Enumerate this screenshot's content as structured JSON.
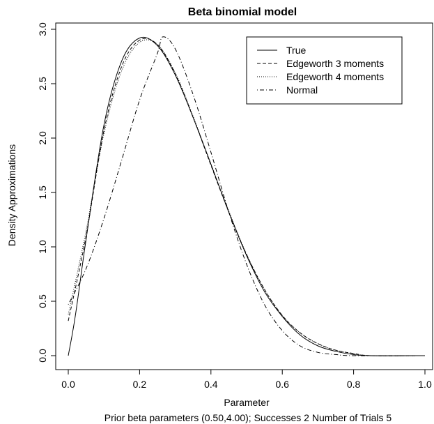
{
  "chart_data": {
    "type": "line",
    "title": "Beta binomial model",
    "xlabel": "Parameter",
    "ylabel": "Density Approximations",
    "subtitle": "Prior beta parameters (0.50,4.00); Successes  2 Number of Trials  5",
    "xlim": [
      0,
      1
    ],
    "ylim": [
      0,
      3
    ],
    "x_ticks": [
      0.0,
      0.2,
      0.4,
      0.6,
      0.8,
      1.0
    ],
    "x_tick_labels": [
      "0.0",
      "0.2",
      "0.4",
      "0.6",
      "0.8",
      "1.0"
    ],
    "y_ticks": [
      0.0,
      0.5,
      1.0,
      1.5,
      2.0,
      2.5,
      3.0
    ],
    "y_tick_labels": [
      "0.0",
      "0.5",
      "1.0",
      "1.5",
      "2.0",
      "2.5",
      "3.0"
    ],
    "legend_position": "top-right",
    "grid": false,
    "series": [
      {
        "name": "True",
        "dash": "solid",
        "points": [
          [
            0.0,
            0.0
          ],
          [
            0.02,
            0.37
          ],
          [
            0.05,
            1.07
          ],
          [
            0.1,
            2.12
          ],
          [
            0.15,
            2.71
          ],
          [
            0.2,
            2.92
          ],
          [
            0.25,
            2.85
          ],
          [
            0.3,
            2.58
          ],
          [
            0.35,
            2.19
          ],
          [
            0.4,
            1.76
          ],
          [
            0.45,
            1.32
          ],
          [
            0.5,
            0.92
          ],
          [
            0.55,
            0.59
          ],
          [
            0.6,
            0.36
          ],
          [
            0.65,
            0.19
          ],
          [
            0.7,
            0.09
          ],
          [
            0.75,
            0.04
          ],
          [
            0.8,
            0.01
          ],
          [
            0.85,
            0.0
          ],
          [
            1.0,
            0.0
          ]
        ]
      },
      {
        "name": "Edgeworth 3 moments",
        "dash": "dashed",
        "points": [
          [
            0.0,
            0.32
          ],
          [
            0.05,
            1.1
          ],
          [
            0.1,
            2.07
          ],
          [
            0.15,
            2.66
          ],
          [
            0.2,
            2.9
          ],
          [
            0.25,
            2.86
          ],
          [
            0.3,
            2.59
          ],
          [
            0.35,
            2.19
          ],
          [
            0.4,
            1.75
          ],
          [
            0.45,
            1.32
          ],
          [
            0.5,
            0.93
          ],
          [
            0.55,
            0.61
          ],
          [
            0.6,
            0.37
          ],
          [
            0.65,
            0.21
          ],
          [
            0.7,
            0.11
          ],
          [
            0.75,
            0.05
          ],
          [
            0.8,
            0.02
          ],
          [
            0.85,
            0.0
          ],
          [
            1.0,
            0.0
          ]
        ]
      },
      {
        "name": "Edgeworth 4 moments",
        "dash": "dotted",
        "points": [
          [
            0.0,
            0.38
          ],
          [
            0.05,
            1.15
          ],
          [
            0.1,
            2.04
          ],
          [
            0.15,
            2.62
          ],
          [
            0.2,
            2.88
          ],
          [
            0.25,
            2.86
          ],
          [
            0.3,
            2.6
          ],
          [
            0.35,
            2.2
          ],
          [
            0.4,
            1.76
          ],
          [
            0.45,
            1.33
          ],
          [
            0.5,
            0.93
          ],
          [
            0.55,
            0.61
          ],
          [
            0.6,
            0.37
          ],
          [
            0.65,
            0.21
          ],
          [
            0.7,
            0.11
          ],
          [
            0.75,
            0.05
          ],
          [
            0.8,
            0.02
          ],
          [
            0.85,
            0.0
          ],
          [
            1.0,
            0.0
          ]
        ]
      },
      {
        "name": "Normal",
        "dash": "dotdash",
        "points": [
          [
            0.0,
            0.47
          ],
          [
            0.05,
            0.8
          ],
          [
            0.1,
            1.26
          ],
          [
            0.15,
            1.8
          ],
          [
            0.2,
            2.35
          ],
          [
            0.25,
            2.78
          ],
          [
            0.265,
            2.93
          ],
          [
            0.3,
            2.82
          ],
          [
            0.35,
            2.4
          ],
          [
            0.4,
            1.87
          ],
          [
            0.45,
            1.32
          ],
          [
            0.5,
            0.84
          ],
          [
            0.55,
            0.47
          ],
          [
            0.6,
            0.23
          ],
          [
            0.65,
            0.09
          ],
          [
            0.7,
            0.03
          ],
          [
            0.75,
            0.01
          ],
          [
            0.8,
            0.0
          ],
          [
            1.0,
            0.0
          ]
        ]
      }
    ]
  }
}
